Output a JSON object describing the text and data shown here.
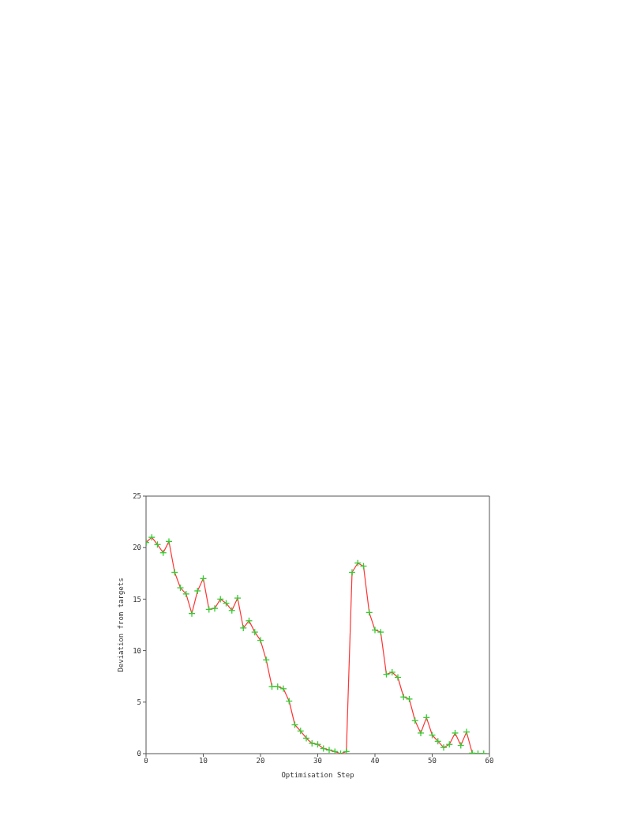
{
  "chart_data": {
    "type": "line",
    "xlabel": "Optimisation Step",
    "ylabel": "Deviation from targets",
    "x": [
      0,
      1,
      2,
      3,
      4,
      5,
      6,
      7,
      8,
      9,
      10,
      11,
      12,
      13,
      14,
      15,
      16,
      17,
      18,
      19,
      20,
      21,
      22,
      23,
      24,
      25,
      26,
      27,
      28,
      29,
      30,
      31,
      32,
      33,
      34,
      35,
      36,
      37,
      38,
      39,
      40,
      41,
      42,
      43,
      44,
      45,
      46,
      47,
      48,
      49,
      50,
      51,
      52,
      53,
      54,
      55,
      56,
      57,
      58,
      59
    ],
    "series": [
      {
        "color": "#ff3333",
        "values": [
          20.5,
          21,
          20.3,
          19.5,
          20.6,
          17.6,
          16.1,
          15.5,
          13.6,
          15.8,
          17,
          14,
          14.1,
          15,
          14.6,
          13.9,
          15.1,
          12.2,
          12.9,
          11.8,
          11,
          9.1,
          6.5,
          6.5,
          6.3,
          5.1,
          2.8,
          2.2,
          1.5,
          1,
          0.9,
          0.5,
          0.35,
          0.2,
          0,
          0.2,
          17.6,
          18.5,
          18.2,
          13.7,
          12,
          11.8,
          7.7,
          7.9,
          7.4,
          5.5,
          5.3,
          3.2,
          2,
          3.5,
          1.8,
          1.2,
          0.6,
          0.9,
          2,
          0.8,
          2.1,
          0.05,
          0,
          0
        ]
      }
    ],
    "xlim": [
      0,
      60
    ],
    "xticks": [
      0,
      10,
      20,
      30,
      40,
      50,
      60
    ],
    "ylim": [
      0,
      25
    ],
    "yticks": [
      0,
      5,
      10,
      15,
      20,
      25
    ],
    "marker": "cross",
    "line_style": "solid"
  }
}
